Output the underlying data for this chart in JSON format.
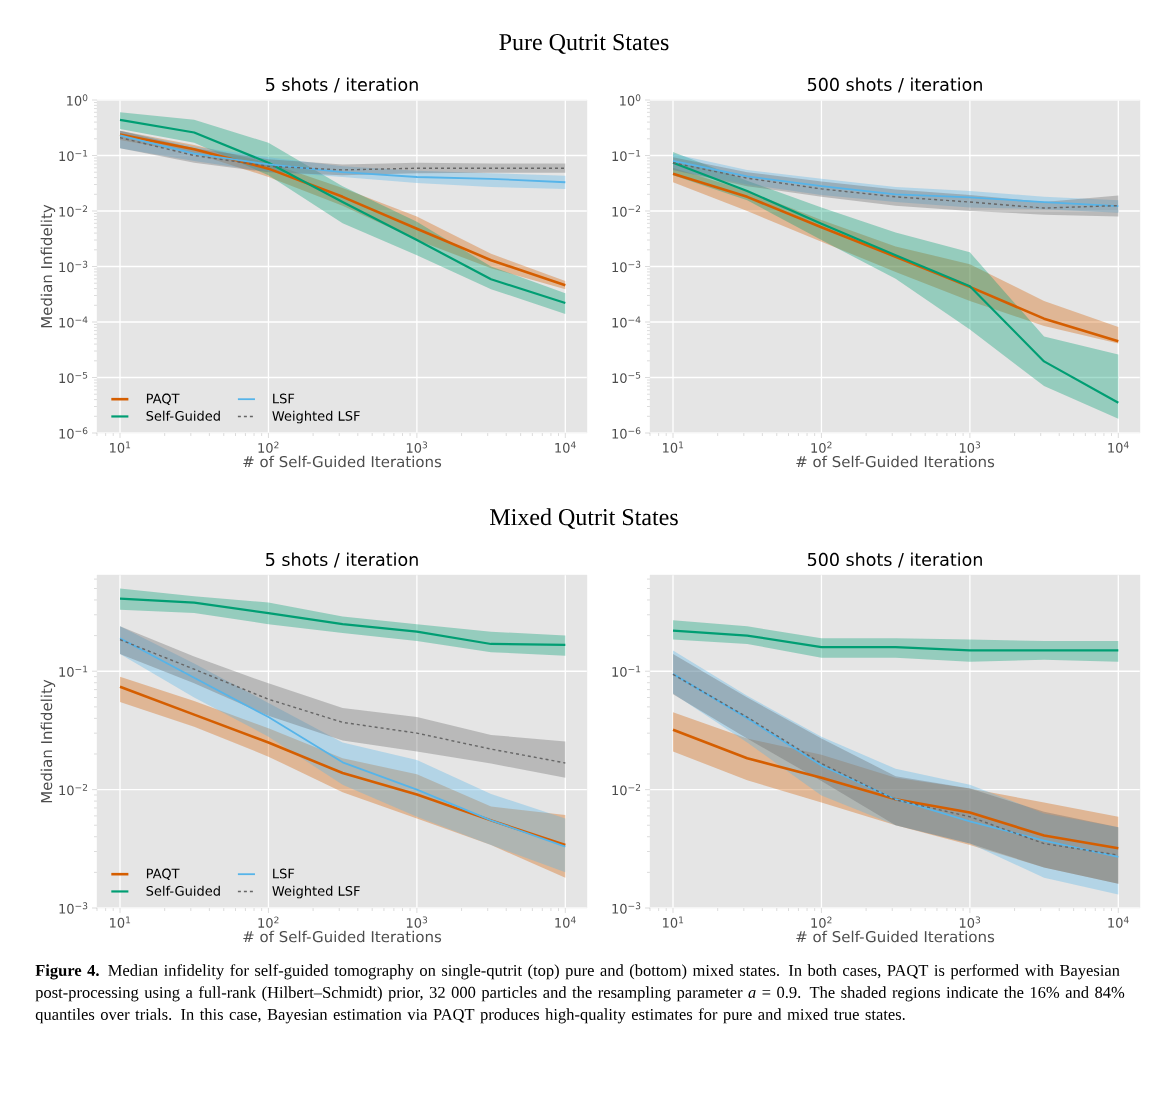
{
  "chart_data": [
    {
      "type": "line",
      "title": "5 shots / iteration",
      "xlabel": "# of Self-Guided Iterations",
      "ylabel": "Median Infidelity",
      "annotations": [
        "Pure Qutrit States"
      ],
      "log": "xy",
      "grid": true,
      "legend": "bottom left",
      "xlim": [
        7,
        14000
      ],
      "ylim": [
        1e-06,
        1
      ],
      "xticks": [
        {
          "value": 10,
          "label": "10$^{1}$"
        },
        {
          "value": 100,
          "label": "10$^{2}$"
        },
        {
          "value": 1000,
          "label": "10$^{3}$"
        },
        {
          "value": 10000,
          "label": "10$^{4}$"
        }
      ],
      "yticks": [
        {
          "value": 1e-06,
          "label": "10$^{−6}$"
        },
        {
          "value": 1e-05,
          "label": "10$^{−5}$"
        },
        {
          "value": 0.0001,
          "label": "10$^{−4}$"
        },
        {
          "value": 0.001,
          "label": "10$^{−3}$"
        },
        {
          "value": 0.01,
          "label": "10$^{−2}$"
        },
        {
          "value": 0.1,
          "label": "10$^{−1}$"
        },
        {
          "value": 1,
          "label": "10$^{0}$"
        }
      ],
      "x": [
        10,
        31.6,
        100,
        316,
        1000,
        3160,
        10000
      ],
      "series": [
        {
          "name": "PAQT",
          "color": "#d55e00",
          "values": [
            0.24,
            0.13,
            0.058,
            0.018,
            0.0048,
            0.0013,
            0.00046
          ],
          "upper": [
            0.28,
            0.155,
            0.074,
            0.026,
            0.008,
            0.0017,
            0.00055
          ],
          "lower": [
            0.19,
            0.11,
            0.041,
            0.0125,
            0.003,
            0.00093,
            0.00039
          ]
        },
        {
          "name": "Self-Guided",
          "color": "#009e73",
          "values": [
            0.44,
            0.26,
            0.074,
            0.0145,
            0.003,
            0.00059,
            0.00022
          ],
          "upper": [
            0.6,
            0.44,
            0.17,
            0.028,
            0.0064,
            0.001,
            0.00033
          ],
          "lower": [
            0.3,
            0.17,
            0.044,
            0.006,
            0.0016,
            0.00039,
            0.00014
          ]
        },
        {
          "name": "LSF",
          "color": "#56b4e9",
          "values": [
            0.23,
            0.108,
            0.069,
            0.05,
            0.041,
            0.038,
            0.033
          ],
          "upper": [
            0.28,
            0.145,
            0.093,
            0.064,
            0.053,
            0.048,
            0.043
          ],
          "lower": [
            0.135,
            0.08,
            0.051,
            0.041,
            0.032,
            0.027,
            0.025
          ]
        },
        {
          "name": "Weighted LSF",
          "color": "#666666",
          "line_style": "dashed",
          "values": [
            0.21,
            0.1,
            0.064,
            0.055,
            0.059,
            0.059,
            0.059
          ],
          "upper": [
            0.28,
            0.135,
            0.086,
            0.069,
            0.074,
            0.072,
            0.072
          ],
          "lower": [
            0.135,
            0.074,
            0.05,
            0.044,
            0.048,
            0.049,
            0.049
          ]
        }
      ]
    },
    {
      "type": "line",
      "title": "500 shots / iteration",
      "xlabel": "# of Self-Guided Iterations",
      "log": "xy",
      "grid": true,
      "xlim": [
        7,
        14000
      ],
      "ylim": [
        1e-06,
        1
      ],
      "xticks": [
        {
          "value": 10,
          "label": "10$^{1}$"
        },
        {
          "value": 100,
          "label": "10$^{2}$"
        },
        {
          "value": 1000,
          "label": "10$^{3}$"
        },
        {
          "value": 10000,
          "label": "10$^{4}$"
        }
      ],
      "yticks": [
        {
          "value": 1e-06,
          "label": "10$^{−6}$"
        },
        {
          "value": 1e-05,
          "label": "10$^{−5}$"
        },
        {
          "value": 0.0001,
          "label": "10$^{−4}$"
        },
        {
          "value": 0.001,
          "label": "10$^{−3}$"
        },
        {
          "value": 0.01,
          "label": "10$^{−2}$"
        },
        {
          "value": 0.1,
          "label": "10$^{−1}$"
        },
        {
          "value": 1,
          "label": "10$^{0}$"
        }
      ],
      "x": [
        10,
        31.6,
        100,
        316,
        1000,
        3160,
        10000
      ],
      "series": [
        {
          "color": "#d55e00",
          "values": [
            0.047,
            0.018,
            0.0051,
            0.0015,
            0.00043,
            0.000115,
            4.5e-05
          ],
          "upper": [
            0.06,
            0.023,
            0.0069,
            0.0023,
            0.0011,
            0.00024,
            8.1e-05
          ],
          "lower": [
            0.033,
            0.01,
            0.0028,
            0.0008,
            0.00024,
            8.5e-05,
            4.1e-05
          ]
        },
        {
          "color": "#009e73",
          "values": [
            0.074,
            0.023,
            0.0059,
            0.0016,
            0.00044,
            1.95e-05,
            3.5e-06
          ],
          "upper": [
            0.116,
            0.035,
            0.0116,
            0.0041,
            0.0018,
            5.5e-05,
            2.6e-05
          ],
          "lower": [
            0.044,
            0.0156,
            0.003,
            0.0006,
            7.3e-05,
            7e-06,
            1.8e-06
          ]
        },
        {
          "color": "#56b4e9",
          "values": [
            0.08,
            0.042,
            0.028,
            0.02,
            0.0176,
            0.0145,
            0.0122
          ],
          "upper": [
            0.108,
            0.055,
            0.038,
            0.027,
            0.023,
            0.018,
            0.0156
          ],
          "lower": [
            0.055,
            0.03,
            0.0195,
            0.0145,
            0.0116,
            0.0108,
            0.0093
          ]
        },
        {
          "color": "#666666",
          "line_style": "dashed",
          "values": [
            0.074,
            0.039,
            0.025,
            0.018,
            0.0145,
            0.0113,
            0.0125
          ],
          "upper": [
            0.093,
            0.05,
            0.034,
            0.0245,
            0.0195,
            0.0145,
            0.019
          ],
          "lower": [
            0.055,
            0.028,
            0.018,
            0.0125,
            0.01,
            0.0086,
            0.008
          ]
        }
      ]
    },
    {
      "type": "line",
      "title": "5 shots / iteration",
      "xlabel": "# of Self-Guided Iterations",
      "ylabel": "Median Infidelity",
      "annotations": [
        "Mixed Qutrit States"
      ],
      "log": "xy",
      "grid": true,
      "legend": "bottom left",
      "xlim": [
        7,
        14000
      ],
      "ylim": [
        0.001,
        0.65
      ],
      "xticks": [
        {
          "value": 10,
          "label": "10$^{1}$"
        },
        {
          "value": 100,
          "label": "10$^{2}$"
        },
        {
          "value": 1000,
          "label": "10$^{3}$"
        },
        {
          "value": 10000,
          "label": "10$^{4}$"
        }
      ],
      "yticks": [
        {
          "value": 0.001,
          "label": "10$^{−3}$"
        },
        {
          "value": 0.01,
          "label": "10$^{−2}$"
        },
        {
          "value": 0.1,
          "label": "10$^{−1}$"
        }
      ],
      "x": [
        10,
        31.6,
        100,
        316,
        1000,
        3160,
        10000
      ],
      "series": [
        {
          "name": "PAQT",
          "color": "#d55e00",
          "values": [
            0.074,
            0.043,
            0.025,
            0.0138,
            0.0091,
            0.0055,
            0.0034
          ],
          "upper": [
            0.09,
            0.056,
            0.033,
            0.0184,
            0.0135,
            0.0072,
            0.0061
          ],
          "lower": [
            0.055,
            0.034,
            0.019,
            0.0095,
            0.0057,
            0.0034,
            0.0018
          ]
        },
        {
          "name": "Self-Guided",
          "color": "#009e73",
          "values": [
            0.41,
            0.38,
            0.31,
            0.25,
            0.216,
            0.17,
            0.167
          ],
          "upper": [
            0.5,
            0.43,
            0.38,
            0.29,
            0.25,
            0.216,
            0.2
          ],
          "lower": [
            0.33,
            0.31,
            0.25,
            0.21,
            0.18,
            0.145,
            0.135
          ]
        },
        {
          "name": "LSF",
          "color": "#56b4e9",
          "values": [
            0.19,
            0.088,
            0.041,
            0.017,
            0.01,
            0.0055,
            0.0033
          ],
          "upper": [
            0.24,
            0.116,
            0.054,
            0.025,
            0.0178,
            0.0092,
            0.0057
          ],
          "lower": [
            0.14,
            0.06,
            0.028,
            0.011,
            0.0059,
            0.0034,
            0.002
          ]
        },
        {
          "name": "Weighted LSF",
          "color": "#666666",
          "line_style": "dashed",
          "values": [
            0.185,
            0.104,
            0.058,
            0.037,
            0.03,
            0.022,
            0.0168
          ],
          "upper": [
            0.24,
            0.133,
            0.079,
            0.049,
            0.041,
            0.029,
            0.0255
          ],
          "lower": [
            0.14,
            0.079,
            0.042,
            0.026,
            0.021,
            0.0166,
            0.0126
          ]
        }
      ]
    },
    {
      "type": "line",
      "title": "500 shots / iteration",
      "xlabel": "# of Self-Guided Iterations",
      "annotations": [
        "**Figure 4.** Median infidelity for self-guided tomography on single-qutrit (top) pure and (bottom) mixed states. In both cases, PAQT is performed with Bayesian post-processing using a full-rank (Hilbert–Schmidt) prior, 32 000 particles and the resampling parameter *a* = 0.9. The shaded regions indicate the 16% and 84% quantiles over trials. In this case, Bayesian estimation via PAQT produces high-quality estimates for pure and mixed true states."
      ],
      "log": "xy",
      "grid": true,
      "xlim": [
        7,
        14000
      ],
      "ylim": [
        0.001,
        0.65
      ],
      "xticks": [
        {
          "value": 10,
          "label": "10$^{1}$"
        },
        {
          "value": 100,
          "label": "10$^{2}$"
        },
        {
          "value": 1000,
          "label": "10$^{3}$"
        },
        {
          "value": 10000,
          "label": "10$^{4}$"
        }
      ],
      "yticks": [
        {
          "value": 0.001,
          "label": "10$^{−3}$"
        },
        {
          "value": 0.01,
          "label": "10$^{−2}$"
        },
        {
          "value": 0.1,
          "label": "10$^{−1}$"
        }
      ],
      "x": [
        10,
        31.6,
        100,
        316,
        1000,
        3160,
        10000
      ],
      "series": [
        {
          "color": "#d55e00",
          "values": [
            0.032,
            0.0184,
            0.0126,
            0.0083,
            0.0064,
            0.0041,
            0.0032
          ],
          "upper": [
            0.045,
            0.027,
            0.0197,
            0.0126,
            0.0102,
            0.0078,
            0.0059
          ],
          "lower": [
            0.021,
            0.012,
            0.0078,
            0.005,
            0.0034,
            0.0022,
            0.0016
          ]
        },
        {
          "color": "#009e73",
          "values": [
            0.22,
            0.2,
            0.16,
            0.16,
            0.15,
            0.15,
            0.15
          ],
          "upper": [
            0.27,
            0.24,
            0.19,
            0.19,
            0.185,
            0.18,
            0.18
          ],
          "lower": [
            0.185,
            0.17,
            0.13,
            0.13,
            0.12,
            0.125,
            0.12
          ]
        },
        {
          "color": "#56b4e9",
          "values": [
            0.095,
            0.04,
            0.016,
            0.0083,
            0.0054,
            0.0037,
            0.0027
          ],
          "upper": [
            0.15,
            0.062,
            0.028,
            0.015,
            0.011,
            0.0063,
            0.0048
          ],
          "lower": [
            0.065,
            0.025,
            0.0089,
            0.005,
            0.0035,
            0.0018,
            0.0013
          ]
        },
        {
          "color": "#666666",
          "line_style": "dashed",
          "values": [
            0.094,
            0.041,
            0.0166,
            0.0082,
            0.0059,
            0.0035,
            0.0028
          ],
          "upper": [
            0.14,
            0.06,
            0.027,
            0.013,
            0.0102,
            0.0065,
            0.0048
          ],
          "lower": [
            0.064,
            0.027,
            0.0118,
            0.005,
            0.0035,
            0.0022,
            0.0016
          ]
        }
      ]
    }
  ]
}
